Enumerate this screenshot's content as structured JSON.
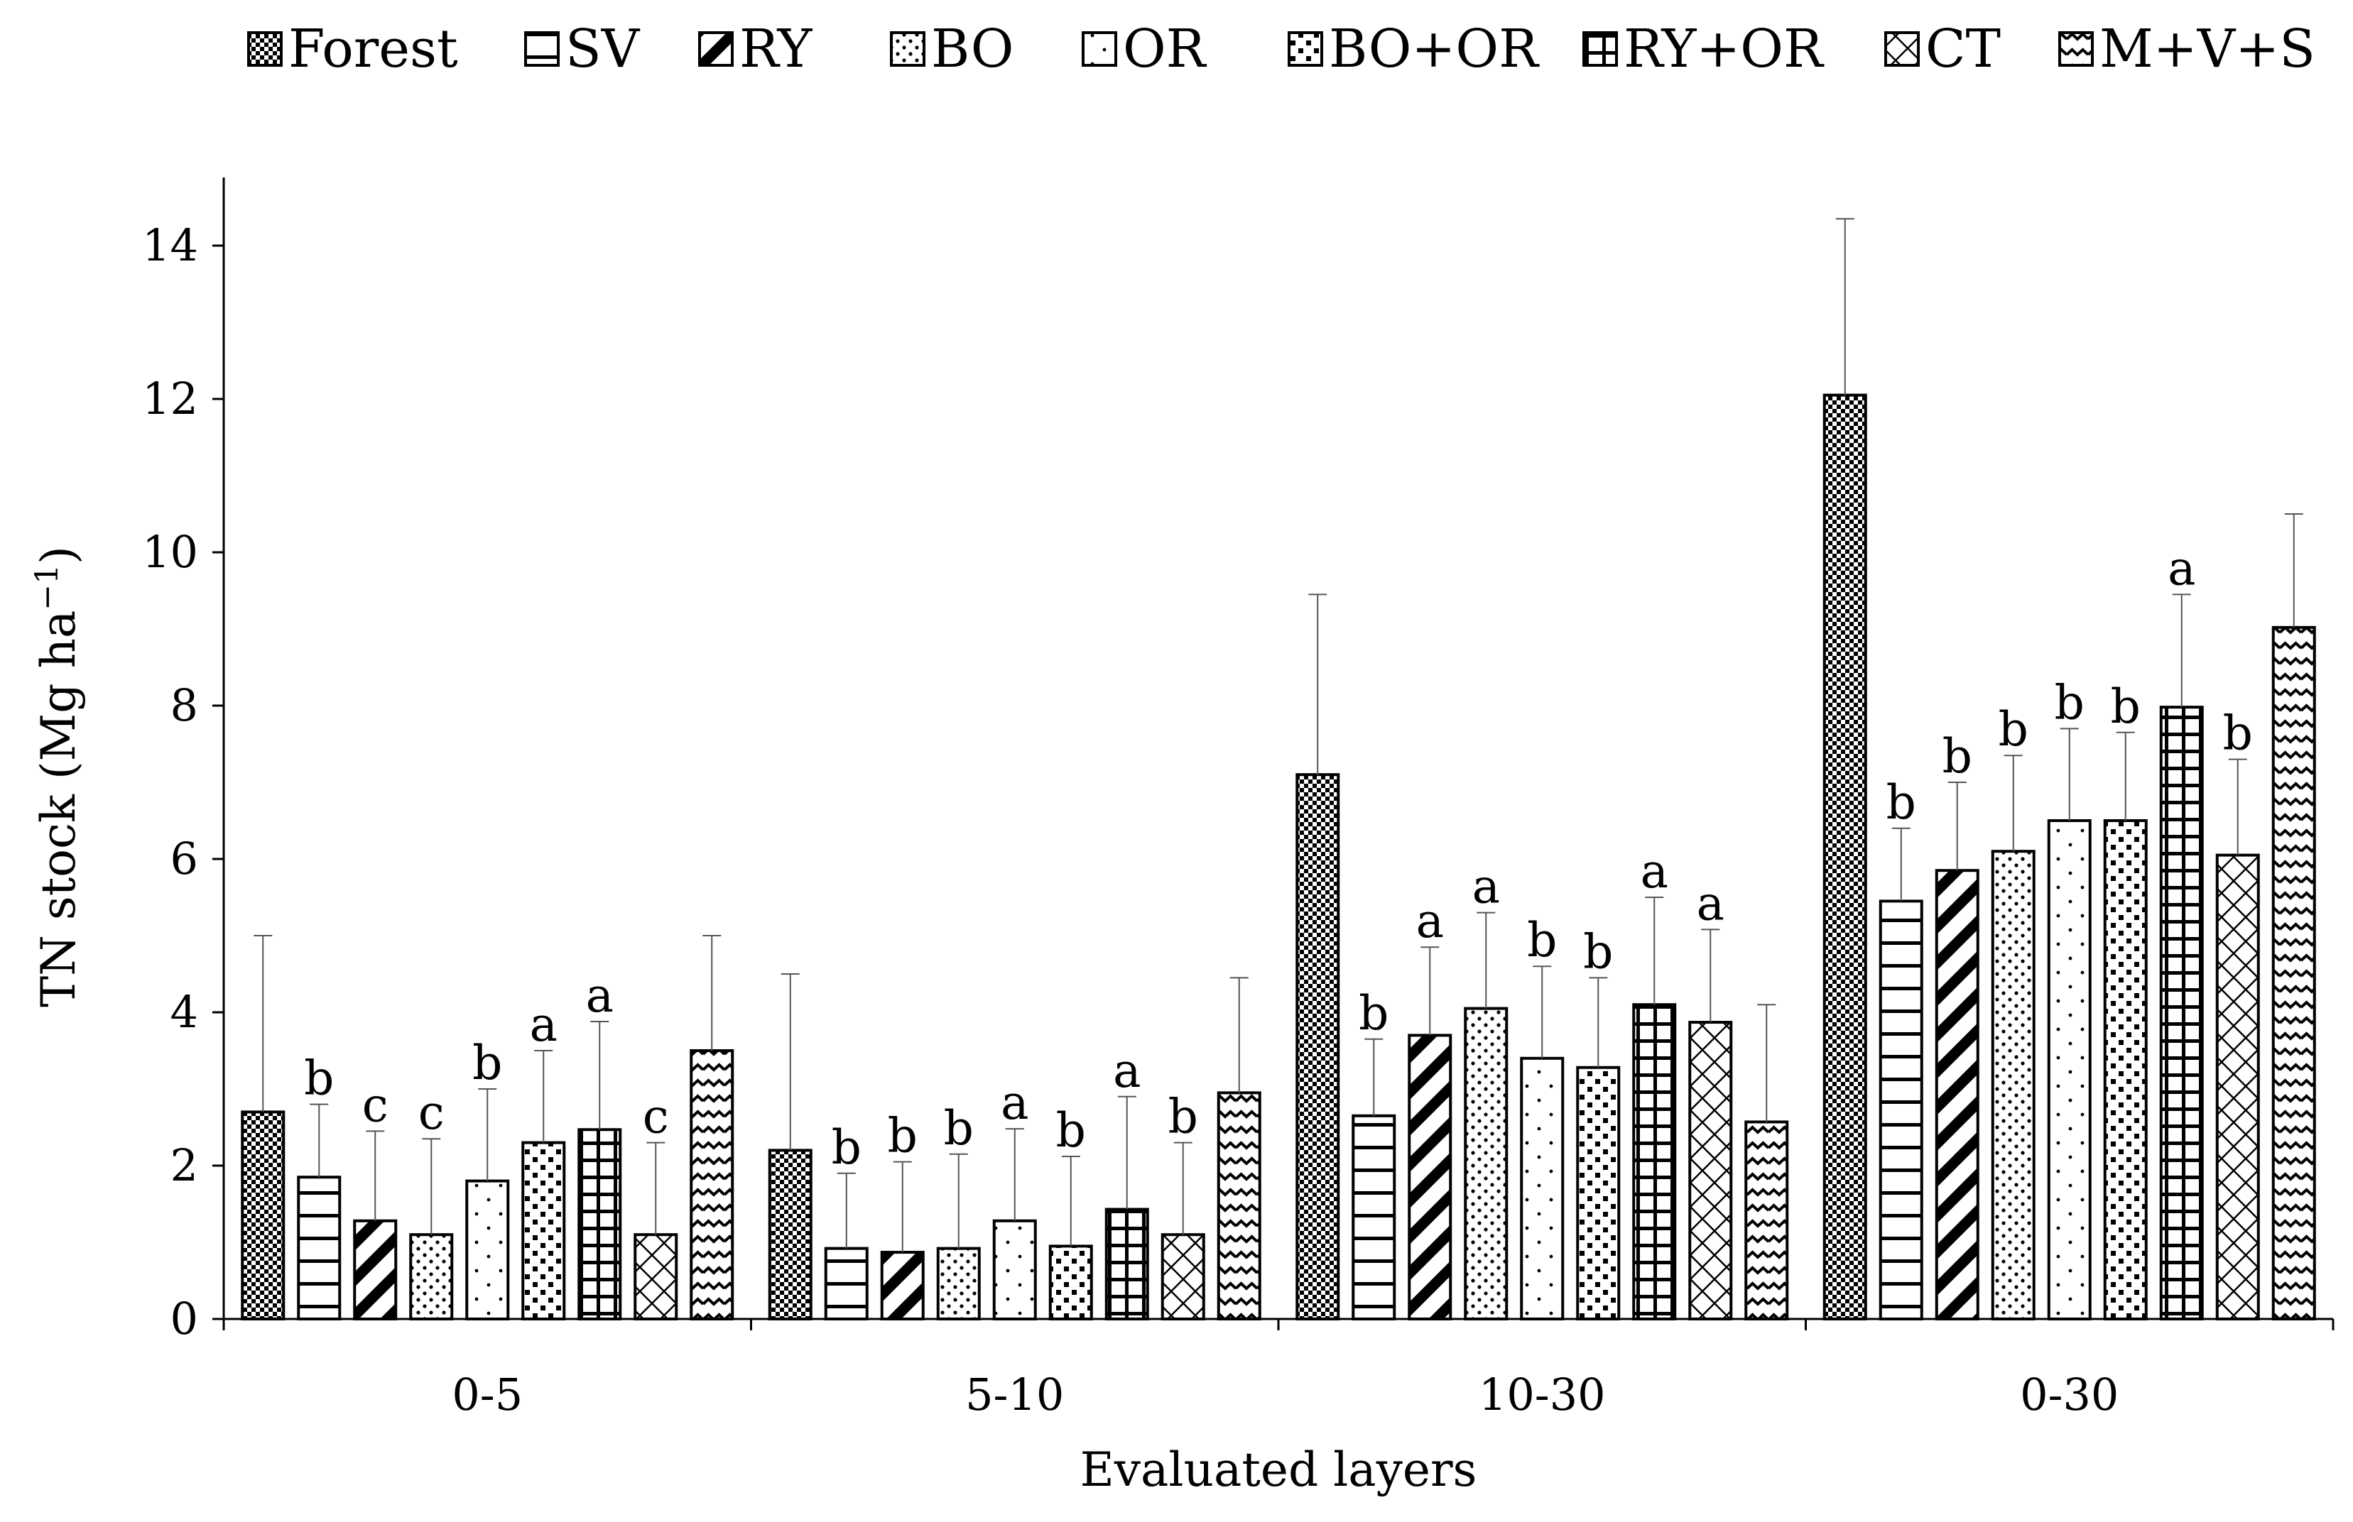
{
  "chart_data": {
    "type": "bar",
    "title": "",
    "xlabel": "Evaluated layers",
    "ylabel_main": "TN stock (Mg ha",
    "ylabel_sup": "−1",
    "ylabel_close": ")",
    "ylim": [
      0,
      15
    ],
    "yticks": [
      0,
      2,
      4,
      6,
      8,
      10,
      12,
      14
    ],
    "ytick_labels": [
      "0",
      "2",
      "4",
      "6",
      "8",
      "10",
      "12",
      "14"
    ],
    "categories": [
      "0-5",
      "5-10",
      "10-30",
      "0-30"
    ],
    "legend_position": "top",
    "series": [
      {
        "name": "Forest",
        "pattern": "dots-dense",
        "values": [
          2.7,
          2.2,
          7.1,
          12.05
        ],
        "errors": [
          5.0,
          4.5,
          9.45,
          14.35
        ],
        "letters": [
          "",
          "",
          "",
          ""
        ]
      },
      {
        "name": "SV",
        "pattern": "hlines",
        "values": [
          1.85,
          0.92,
          2.65,
          5.45
        ],
        "errors": [
          2.8,
          1.9,
          3.65,
          6.4
        ],
        "letters": [
          "b",
          "b",
          "b",
          "b"
        ]
      },
      {
        "name": "RY",
        "pattern": "diag-thick",
        "values": [
          1.28,
          0.87,
          3.7,
          5.85
        ],
        "errors": [
          2.45,
          2.05,
          4.85,
          7.0
        ],
        "letters": [
          "c",
          "b",
          "a",
          "b"
        ]
      },
      {
        "name": "BO",
        "pattern": "dots-sparse",
        "values": [
          1.1,
          0.92,
          4.05,
          6.1
        ],
        "errors": [
          2.35,
          2.15,
          5.3,
          7.35
        ],
        "letters": [
          "c",
          "b",
          "a",
          "b"
        ]
      },
      {
        "name": "OR",
        "pattern": "dots-tiny",
        "values": [
          1.8,
          1.28,
          3.4,
          6.5
        ],
        "errors": [
          3.0,
          2.48,
          4.6,
          7.7
        ],
        "letters": [
          "b",
          "a",
          "b",
          "b"
        ]
      },
      {
        "name": "BO+OR",
        "pattern": "dots-big",
        "values": [
          2.3,
          0.95,
          3.28,
          6.5
        ],
        "errors": [
          3.5,
          2.12,
          4.45,
          7.65
        ],
        "letters": [
          "a",
          "b",
          "b",
          "b"
        ]
      },
      {
        "name": "RY+OR",
        "pattern": "grid",
        "values": [
          2.47,
          1.43,
          4.1,
          7.98
        ],
        "errors": [
          3.88,
          2.9,
          5.5,
          9.45
        ],
        "letters": [
          "a",
          "a",
          "a",
          "a"
        ]
      },
      {
        "name": "CT",
        "pattern": "crosshatch",
        "values": [
          1.1,
          1.1,
          3.87,
          6.05
        ],
        "errors": [
          2.3,
          2.3,
          5.08,
          7.3
        ],
        "letters": [
          "c",
          "b",
          "a",
          "b"
        ]
      },
      {
        "name": "M+V+S",
        "pattern": "waves",
        "values": [
          3.5,
          2.95,
          2.57,
          9.02
        ],
        "errors": [
          5.0,
          4.45,
          4.1,
          10.5
        ],
        "letters": [
          "",
          "",
          "",
          ""
        ]
      }
    ],
    "colors": {
      "ink": "#000000",
      "background": "#ffffff"
    }
  }
}
